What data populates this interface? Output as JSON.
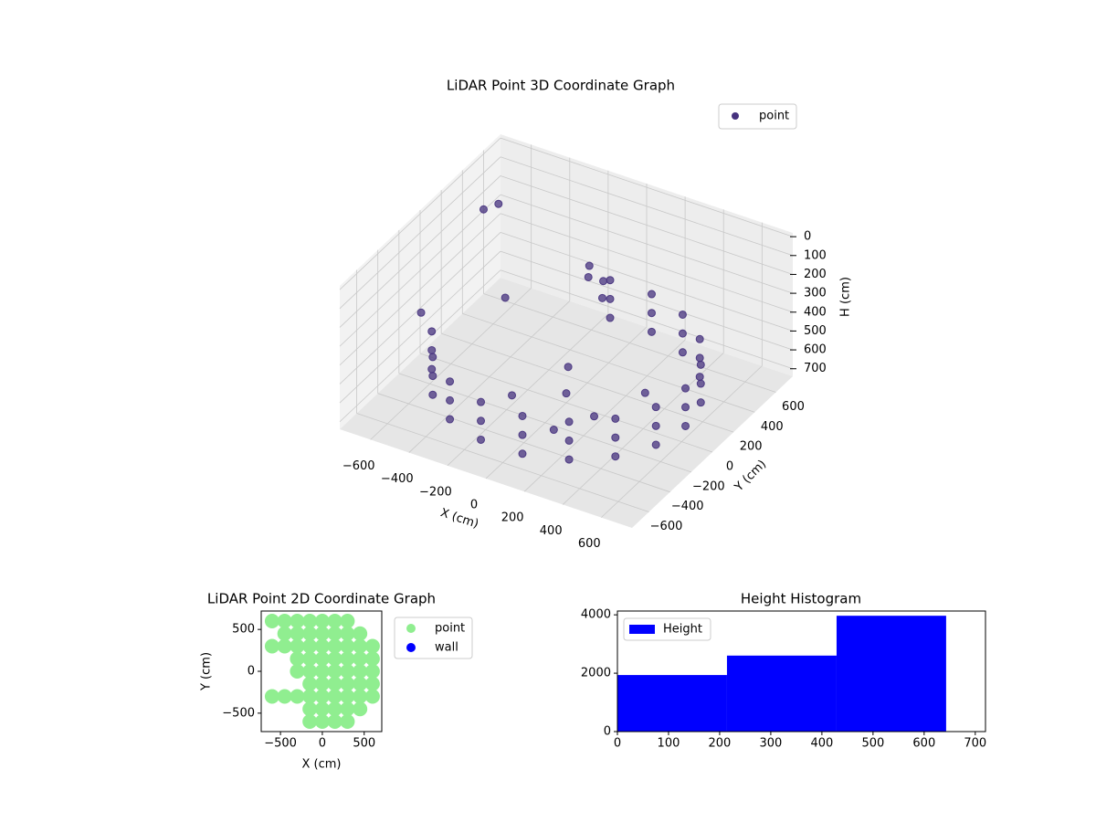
{
  "chart_data": [
    {
      "type": "scatter3d",
      "title": "LiDAR Point 3D Coordinate Graph",
      "x_label": "X (cm)",
      "y_label": "Y (cm)",
      "z_label": "H (cm)",
      "xlim": [
        -760,
        760
      ],
      "ylim": [
        -760,
        760
      ],
      "zlim": [
        740,
        -20
      ],
      "xticks": [
        {
          "value": -600,
          "label": "−600"
        },
        {
          "value": -400,
          "label": "−400"
        },
        {
          "value": -200,
          "label": "−200"
        },
        0,
        200,
        400,
        600
      ],
      "yticks": [
        {
          "value": -600,
          "label": "−600"
        },
        {
          "value": -400,
          "label": "−400"
        },
        {
          "value": -200,
          "label": "−200"
        },
        0,
        200,
        400,
        600
      ],
      "zticks": [
        0,
        100,
        200,
        300,
        400,
        500,
        600,
        700
      ],
      "grid": true,
      "legend": "upper right",
      "series": [
        {
          "name": "point",
          "color": "#46327e",
          "x": [
            -583,
            -583,
            -583,
            -475,
            -475,
            -475,
            -310,
            -310,
            -310,
            -108,
            -108,
            -108,
            108,
            108,
            108,
            310,
            310,
            310,
            475,
            475,
            475,
            583,
            583,
            583,
            620,
            620,
            620,
            583,
            583,
            583,
            475,
            475,
            475,
            310,
            310,
            310,
            108,
            108,
            108,
            -108,
            -108,
            -108,
            0,
            200,
            -200,
            300,
            100,
            -100,
            -50,
            0,
            50,
            -100,
            -650,
            -600,
            -700,
            -400
          ],
          "y": [
            -212,
            -212,
            -212,
            -399,
            -399,
            -399,
            -537,
            -537,
            -537,
            -611,
            -611,
            -611,
            -611,
            -611,
            -611,
            -537,
            -537,
            -537,
            -399,
            -399,
            -399,
            -212,
            -212,
            -212,
            0,
            0,
            0,
            212,
            212,
            212,
            399,
            399,
            399,
            537,
            537,
            537,
            611,
            611,
            611,
            611,
            611,
            611,
            0,
            -100,
            -150,
            200,
            -300,
            200,
            300,
            350,
            250,
            400,
            400,
            450,
            -100,
            150
          ],
          "z": [
            450,
            550,
            650,
            450,
            550,
            650,
            450,
            550,
            650,
            450,
            550,
            650,
            450,
            550,
            650,
            450,
            550,
            650,
            450,
            550,
            650,
            450,
            550,
            650,
            450,
            550,
            650,
            450,
            550,
            650,
            450,
            550,
            650,
            450,
            550,
            650,
            450,
            550,
            650,
            450,
            550,
            650,
            690,
            690,
            690,
            690,
            690,
            690,
            250,
            280,
            300,
            260,
            150,
            130,
            450,
            400
          ]
        }
      ]
    },
    {
      "type": "scatter",
      "title": "LiDAR Point 2D Coordinate Graph",
      "x_label": "X (cm)",
      "y_label": "Y (cm)",
      "xlim": [
        -730,
        710
      ],
      "ylim": [
        -720,
        720
      ],
      "xticks": [
        {
          "value": -500,
          "label": "−500"
        },
        0,
        500
      ],
      "yticks": [
        {
          "value": -500,
          "label": "−500"
        },
        0,
        500
      ],
      "legend": "outside right",
      "series": [
        {
          "name": "point",
          "color": "#90ee90",
          "x": [
            0,
            0,
            0,
            0,
            0,
            0,
            0,
            0,
            0,
            150,
            150,
            150,
            150,
            150,
            150,
            150,
            150,
            150,
            300,
            300,
            300,
            300,
            300,
            300,
            300,
            300,
            300,
            450,
            450,
            450,
            450,
            450,
            450,
            450,
            600,
            600,
            600,
            600,
            600,
            -150,
            -150,
            -150,
            -150,
            -150,
            -150,
            -150,
            -150,
            -150,
            -300,
            -300,
            -300,
            -300,
            -300,
            -300,
            -450,
            -450,
            -450,
            -450,
            -600,
            -600,
            -600
          ],
          "y": [
            -600,
            -450,
            -300,
            -150,
            0,
            150,
            300,
            450,
            600,
            -600,
            -450,
            -300,
            -150,
            0,
            150,
            300,
            450,
            600,
            -600,
            -450,
            -300,
            -150,
            0,
            150,
            300,
            450,
            600,
            -450,
            -300,
            -150,
            0,
            150,
            300,
            450,
            -300,
            -150,
            0,
            150,
            300,
            -600,
            -450,
            -300,
            -150,
            0,
            150,
            300,
            450,
            600,
            -300,
            0,
            150,
            300,
            450,
            600,
            -300,
            300,
            450,
            600,
            -300,
            300,
            600
          ]
        },
        {
          "name": "wall",
          "color": "#0000ff",
          "x": [],
          "y": []
        }
      ]
    },
    {
      "type": "histogram",
      "title": "Height Histogram",
      "xlim": [
        0,
        720
      ],
      "ylim": [
        0,
        4130
      ],
      "xticks": [
        0,
        100,
        200,
        300,
        400,
        500,
        600,
        700
      ],
      "yticks": [
        0,
        2000,
        4000
      ],
      "legend": "upper left",
      "bins": [
        0,
        214.3,
        428.7,
        643
      ],
      "series": [
        {
          "name": "Height",
          "color": "#0000ff",
          "values": [
            1937,
            2603,
            3968
          ]
        }
      ]
    }
  ]
}
